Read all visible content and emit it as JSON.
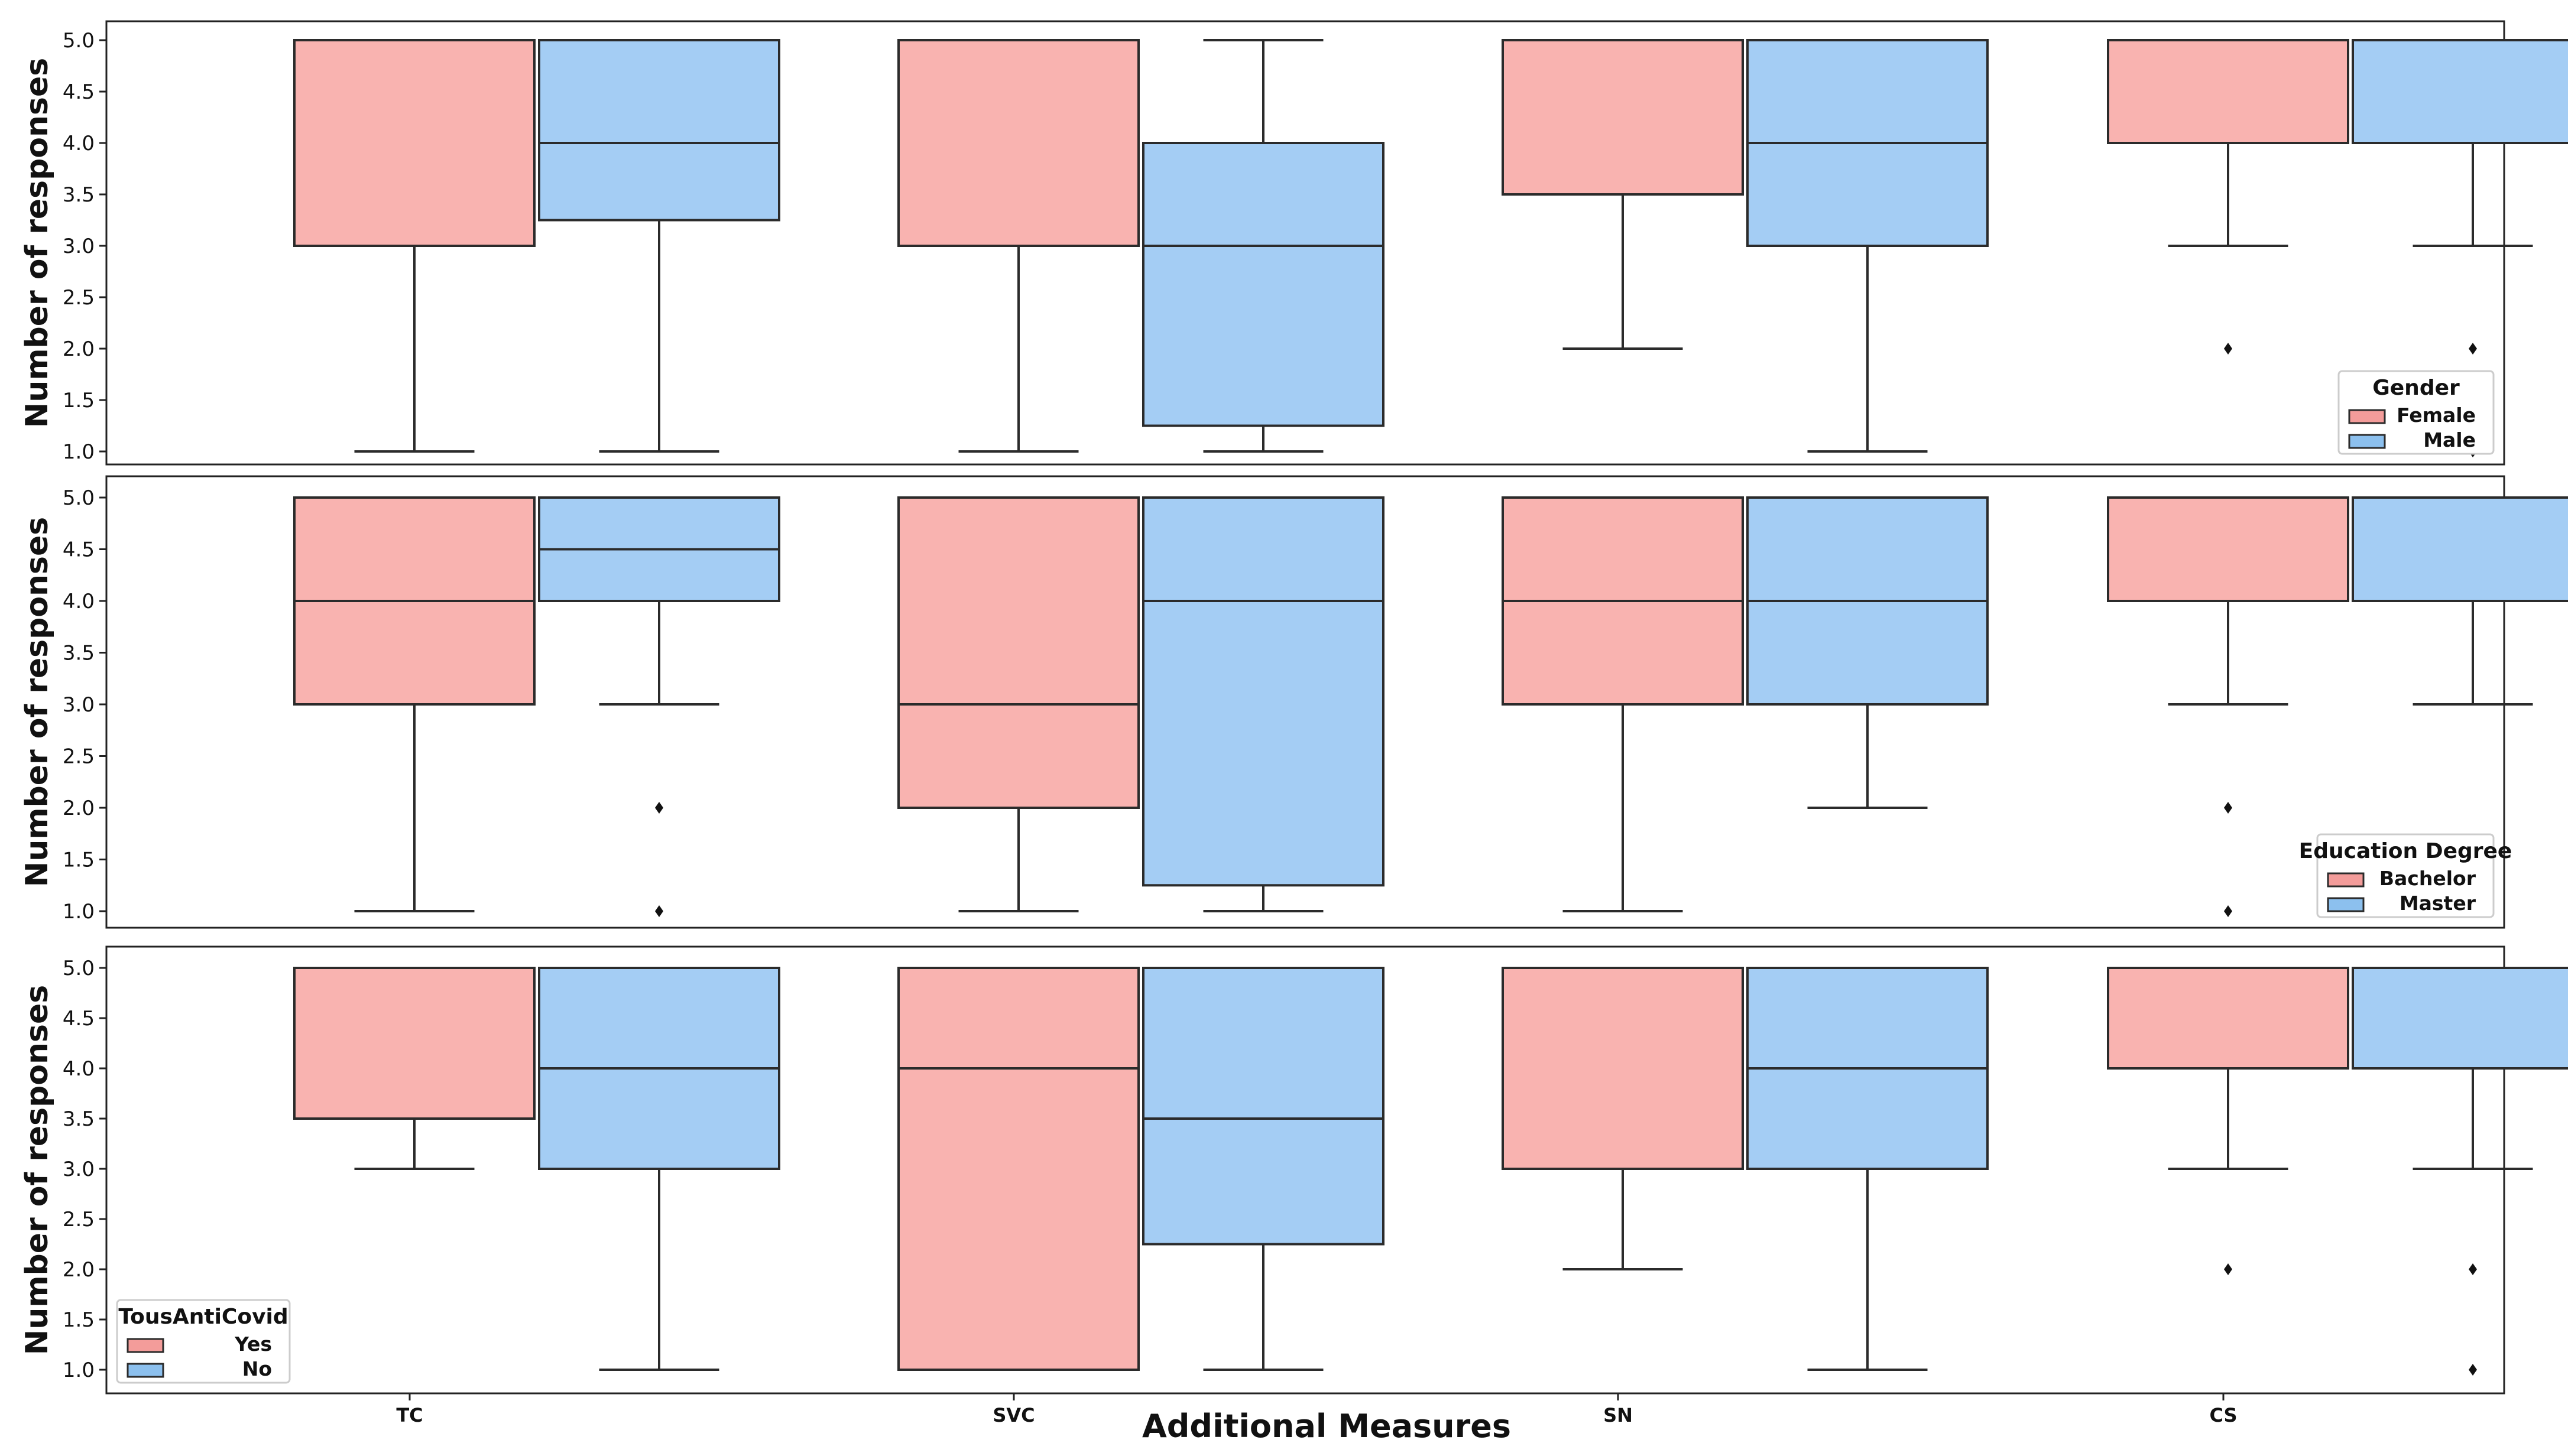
{
  "chart_data": {
    "type": "boxplot",
    "xlabel": "Additional Measures",
    "ylabel": "Number of responses",
    "categories": [
      "TC",
      "SVC",
      "SN",
      "CS"
    ],
    "yticks": [
      "1.0",
      "1.5",
      "2.0",
      "2.5",
      "3.0",
      "3.5",
      "4.0",
      "4.5",
      "5.0"
    ],
    "ylim": [
      1.0,
      5.0
    ],
    "colors": {
      "group1": "#f9b3b0",
      "group2": "#a4cdf4",
      "group1_legend": "#f39c9a",
      "group2_legend": "#8cc0ee",
      "stroke": "#2b2b2b"
    },
    "panels": [
      {
        "legend_title": "Gender",
        "legend_position": "bottom-right",
        "series": [
          {
            "name": "Female",
            "boxes": [
              {
                "whislo": 1.0,
                "q1": 3.0,
                "med": 5.0,
                "q3": 5.0,
                "whishi": 5.0,
                "fliers": []
              },
              {
                "whislo": 1.0,
                "q1": 3.0,
                "med": 5.0,
                "q3": 5.0,
                "whishi": 5.0,
                "fliers": []
              },
              {
                "whislo": 2.0,
                "q1": 3.5,
                "med": 5.0,
                "q3": 5.0,
                "whishi": 5.0,
                "fliers": []
              },
              {
                "whislo": 3.0,
                "q1": 4.0,
                "med": 5.0,
                "q3": 5.0,
                "whishi": 5.0,
                "fliers": [
                  2.0
                ]
              }
            ]
          },
          {
            "name": "Male",
            "boxes": [
              {
                "whislo": 1.0,
                "q1": 3.25,
                "med": 4.0,
                "q3": 5.0,
                "whishi": 5.0,
                "fliers": []
              },
              {
                "whislo": 1.0,
                "q1": 1.25,
                "med": 3.0,
                "q3": 4.0,
                "whishi": 5.0,
                "fliers": []
              },
              {
                "whislo": 1.0,
                "q1": 3.0,
                "med": 4.0,
                "q3": 5.0,
                "whishi": 5.0,
                "fliers": []
              },
              {
                "whislo": 3.0,
                "q1": 4.0,
                "med": 5.0,
                "q3": 5.0,
                "whishi": 5.0,
                "fliers": [
                  2.0,
                  1.0
                ]
              }
            ]
          }
        ]
      },
      {
        "legend_title": "Education Degree",
        "legend_position": "bottom-right",
        "series": [
          {
            "name": "Bachelor",
            "boxes": [
              {
                "whislo": 1.0,
                "q1": 3.0,
                "med": 4.0,
                "q3": 5.0,
                "whishi": 5.0,
                "fliers": []
              },
              {
                "whislo": 1.0,
                "q1": 2.0,
                "med": 3.0,
                "q3": 5.0,
                "whishi": 5.0,
                "fliers": []
              },
              {
                "whislo": 1.0,
                "q1": 3.0,
                "med": 4.0,
                "q3": 5.0,
                "whishi": 5.0,
                "fliers": []
              },
              {
                "whislo": 3.0,
                "q1": 4.0,
                "med": 5.0,
                "q3": 5.0,
                "whishi": 5.0,
                "fliers": [
                  2.0,
                  1.0
                ]
              }
            ]
          },
          {
            "name": "Master",
            "boxes": [
              {
                "whislo": 3.0,
                "q1": 4.0,
                "med": 4.5,
                "q3": 5.0,
                "whishi": 5.0,
                "fliers": [
                  2.0,
                  1.0
                ]
              },
              {
                "whislo": 1.0,
                "q1": 1.25,
                "med": 4.0,
                "q3": 5.0,
                "whishi": 5.0,
                "fliers": []
              },
              {
                "whislo": 2.0,
                "q1": 3.0,
                "med": 4.0,
                "q3": 5.0,
                "whishi": 5.0,
                "fliers": []
              },
              {
                "whislo": 3.0,
                "q1": 4.0,
                "med": 5.0,
                "q3": 5.0,
                "whishi": 5.0,
                "fliers": []
              }
            ]
          }
        ]
      },
      {
        "legend_title": "TousAntiCovid",
        "legend_position": "bottom-left",
        "series": [
          {
            "name": "Yes",
            "boxes": [
              {
                "whislo": 3.0,
                "q1": 3.5,
                "med": 5.0,
                "q3": 5.0,
                "whishi": 5.0,
                "fliers": []
              },
              {
                "whislo": 1.0,
                "q1": 1.0,
                "med": 4.0,
                "q3": 5.0,
                "whishi": 5.0,
                "fliers": []
              },
              {
                "whislo": 2.0,
                "q1": 3.0,
                "med": 5.0,
                "q3": 5.0,
                "whishi": 5.0,
                "fliers": []
              },
              {
                "whislo": 3.0,
                "q1": 4.0,
                "med": 5.0,
                "q3": 5.0,
                "whishi": 5.0,
                "fliers": [
                  2.0
                ]
              }
            ]
          },
          {
            "name": "No",
            "boxes": [
              {
                "whislo": 1.0,
                "q1": 3.0,
                "med": 4.0,
                "q3": 5.0,
                "whishi": 5.0,
                "fliers": []
              },
              {
                "whislo": 1.0,
                "q1": 2.25,
                "med": 3.5,
                "q3": 5.0,
                "whishi": 5.0,
                "fliers": []
              },
              {
                "whislo": 1.0,
                "q1": 3.0,
                "med": 4.0,
                "q3": 5.0,
                "whishi": 5.0,
                "fliers": []
              },
              {
                "whislo": 3.0,
                "q1": 4.0,
                "med": 5.0,
                "q3": 5.0,
                "whishi": 5.0,
                "fliers": [
                  2.0,
                  1.0
                ]
              }
            ]
          }
        ]
      }
    ]
  }
}
